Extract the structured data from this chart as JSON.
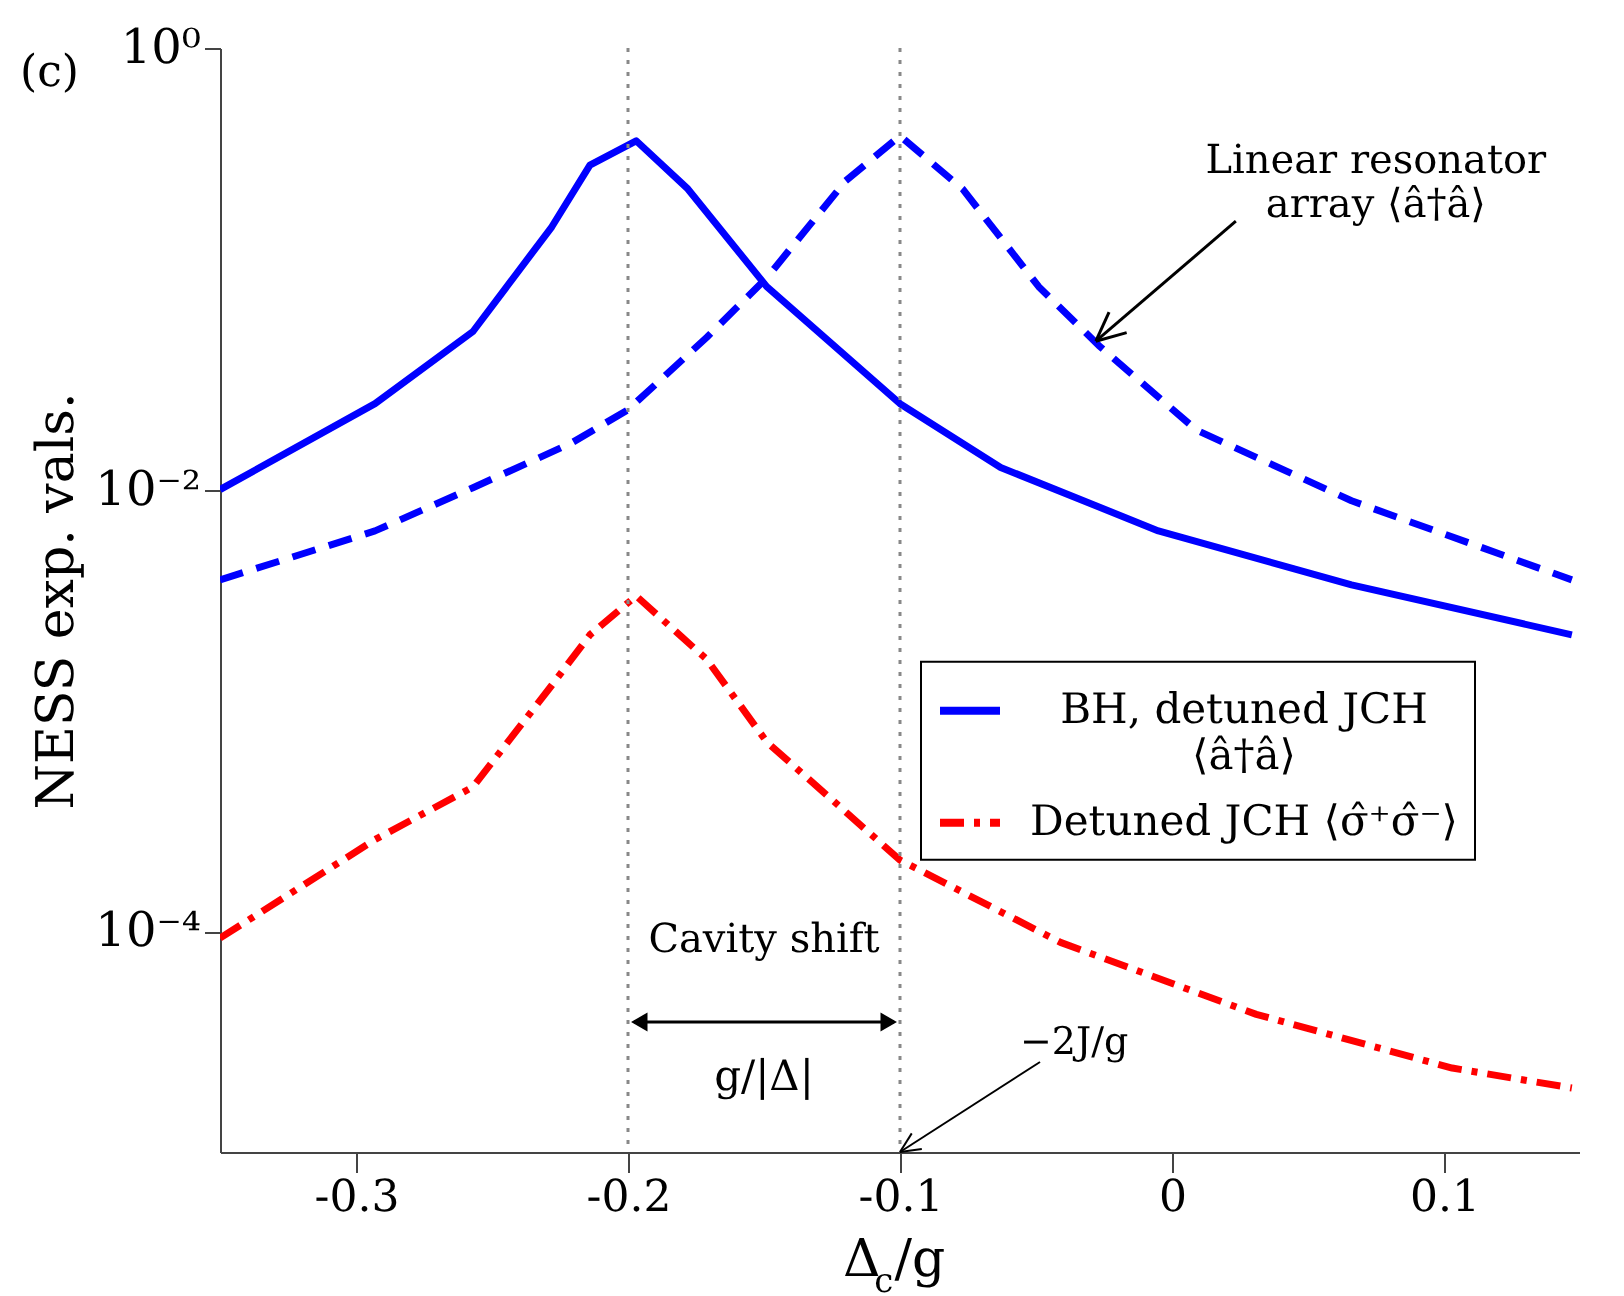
{
  "chart_data": {
    "type": "line",
    "xlabel": "Δ$_{c}$/g",
    "ylabel": "NESS exp. vals.",
    "log": "y",
    "xlim": [
      -0.35,
      0.15
    ],
    "ylim": [
      1e-05,
      1
    ],
    "xticks": [
      {
        "value": -0.3,
        "label": "-0.3"
      },
      {
        "value": -0.2,
        "label": "-0.2"
      },
      {
        "value": -0.1,
        "label": "-0.1"
      },
      0,
      0.1
    ],
    "yticks": [
      {
        "value": 0.0001,
        "label": "10⁻⁴"
      },
      {
        "value": 0.01,
        "label": "10⁻²"
      },
      {
        "value": 1,
        "label": "10⁰"
      }
    ],
    "grid": false,
    "legend": "right",
    "series": [
      {
        "name": "BH, detuned JCH\n⟨â†â⟩",
        "color": "#0000ff",
        "line_style": "solid",
        "x": [
          -0.35,
          -0.293,
          -0.257,
          -0.228,
          -0.214,
          -0.197,
          -0.178,
          -0.149,
          -0.1,
          -0.063,
          -0.005,
          0.066,
          0.147
        ],
        "values": [
          0.01,
          0.0245,
          0.052,
          0.155,
          0.295,
          0.38,
          0.23,
          0.083,
          0.0245,
          0.0126,
          0.0065,
          0.0037,
          0.0022
        ]
      },
      {
        "color": "#0000ff",
        "line_style": "dashed",
        "x": [
          -0.35,
          -0.293,
          -0.257,
          -0.221,
          -0.2,
          -0.171,
          -0.149,
          -0.12,
          -0.1,
          -0.077,
          -0.049,
          -0.027,
          0.009,
          0.066,
          0.147
        ],
        "values": [
          0.0039,
          0.0065,
          0.0102,
          0.0162,
          0.023,
          0.049,
          0.091,
          0.25,
          0.4,
          0.23,
          0.083,
          0.045,
          0.0186,
          0.0089,
          0.0039
        ]
      },
      {
        "name": "Detuned JCH ⟨σ̂⁺σ̂⁻⟩",
        "color": "#ff0000",
        "line_style": "dashdot",
        "x": [
          -0.35,
          -0.293,
          -0.257,
          -0.228,
          -0.214,
          -0.197,
          -0.171,
          -0.149,
          -0.1,
          -0.041,
          0.031,
          0.103,
          0.147
        ],
        "values": [
          9.3e-05,
          0.00026,
          0.00045,
          0.0013,
          0.0022,
          0.0033,
          0.0017,
          0.00072,
          0.00021,
          8.9e-05,
          4.2e-05,
          2.4e-05,
          1.95e-05
        ]
      }
    ],
    "ref_lines": [
      {
        "axis": "x",
        "value": -0.2,
        "color": "#888888",
        "line_style": "dotted"
      },
      {
        "axis": "x",
        "value": -0.1,
        "color": "#888888",
        "line_style": "dotted"
      }
    ],
    "annotations": [
      "(c)",
      {
        "text": "Linear resonator\narray ⟨â†â⟩",
        "x": -0.028,
        "y": 0.047
      },
      "Cavity shift",
      "g/|Δ|",
      {
        "text": "−2J/g",
        "x": -0.1,
        "y": 1e-05
      }
    ]
  }
}
